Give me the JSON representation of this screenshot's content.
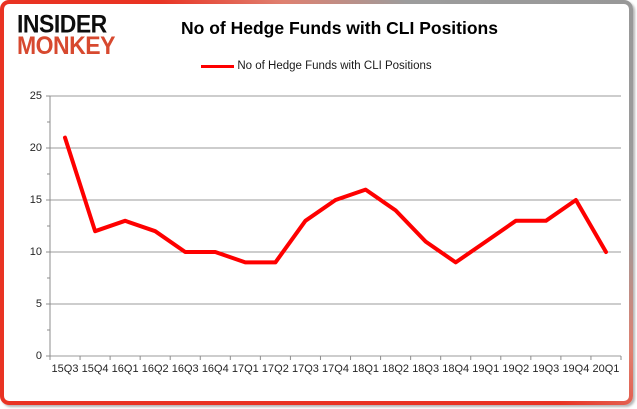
{
  "logo": {
    "line1": "INSIDER",
    "line2": "MONKEY"
  },
  "title": "No of Hedge Funds with CLI Positions",
  "legend": {
    "label": "No of Hedge Funds with CLI Positions",
    "swatch_color": "#fe0000"
  },
  "chart_data": {
    "type": "line",
    "title": "No of Hedge Funds with CLI Positions",
    "categories": [
      "15Q3",
      "15Q4",
      "16Q1",
      "16Q2",
      "16Q3",
      "16Q4",
      "17Q1",
      "17Q2",
      "17Q3",
      "17Q4",
      "18Q1",
      "18Q2",
      "18Q3",
      "18Q4",
      "19Q1",
      "19Q2",
      "19Q3",
      "19Q4",
      "20Q1"
    ],
    "series": [
      {
        "name": "No of Hedge Funds with CLI Positions",
        "color": "#fe0000",
        "values": [
          21,
          12,
          13,
          12,
          10,
          10,
          9,
          9,
          13,
          15,
          16,
          14,
          11,
          9,
          11,
          13,
          13,
          15,
          10
        ]
      }
    ],
    "xlabel": "",
    "ylabel": "",
    "ylim": [
      0,
      25
    ],
    "yticks": [
      0,
      5,
      10,
      15,
      20,
      25
    ],
    "grid": "horizontal",
    "legend_position": "top"
  },
  "colors": {
    "line": "#fe0000",
    "grid": "#9b9b9b",
    "axis": "#8c8c8c",
    "text": "#262626",
    "border_red": "#e93323",
    "border_gray": "#989898",
    "logo_black": "#0d0d0d",
    "logo_red": "#d7492f"
  }
}
